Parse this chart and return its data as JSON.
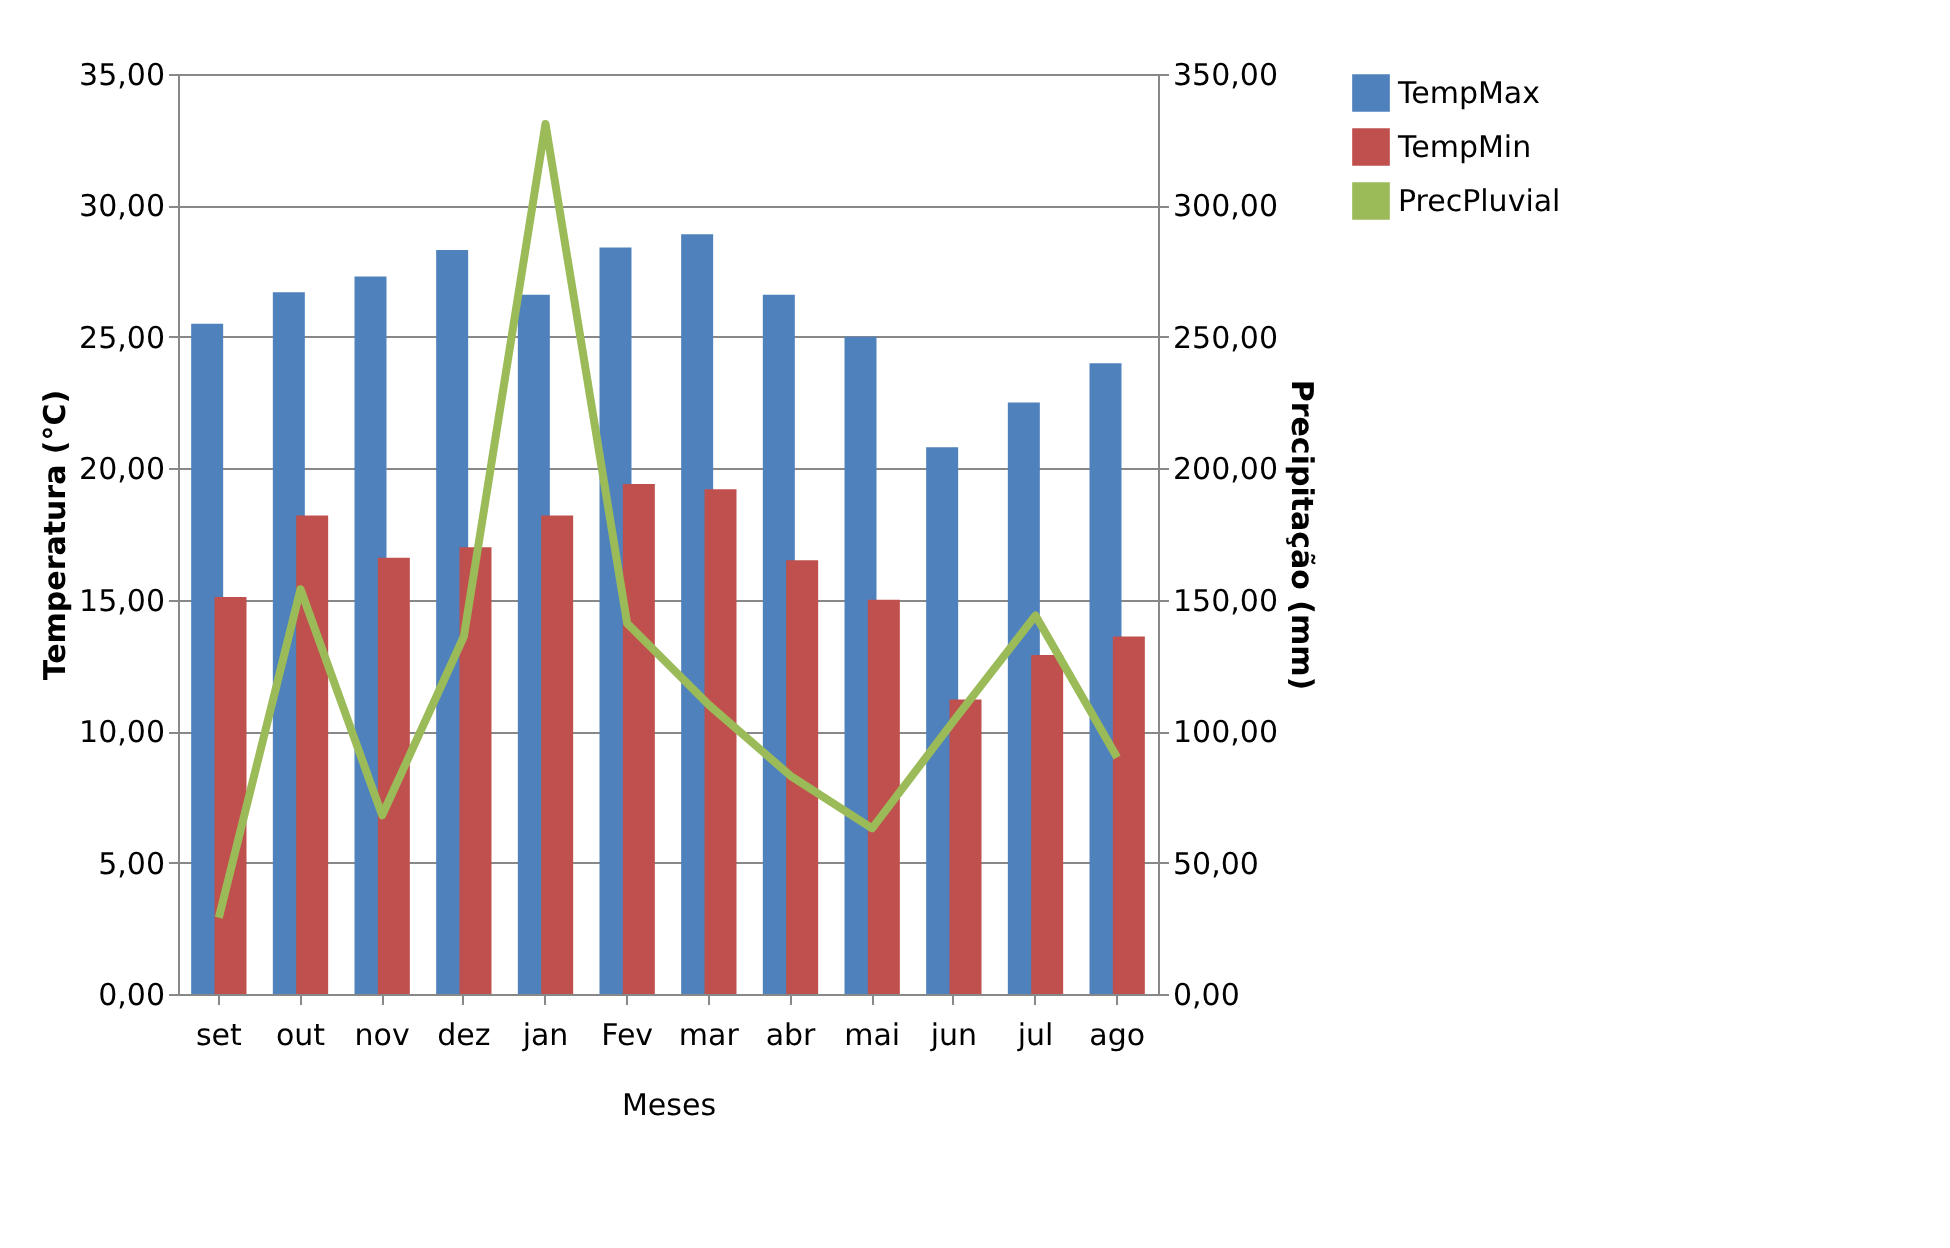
{
  "chart_data": {
    "type": "bar",
    "xlabel": "Meses",
    "ylabel": "Temperatura (°C)",
    "y2label": "Precipitação (mm)",
    "categories": [
      "set",
      "out",
      "nov",
      "dez",
      "jan",
      "Fev",
      "mar",
      "abr",
      "mai",
      "jun",
      "jul",
      "ago"
    ],
    "series": [
      {
        "name": "TempMax",
        "color": "#4f81bd",
        "values": [
          25.5,
          26.7,
          27.3,
          28.3,
          26.6,
          28.4,
          28.9,
          26.6,
          25.0,
          20.8,
          22.5,
          24.0
        ]
      },
      {
        "name": "TempMin",
        "color": "#c0504d",
        "values": [
          15.1,
          18.2,
          16.6,
          17.0,
          18.2,
          19.4,
          19.2,
          16.5,
          15.0,
          11.2,
          12.9,
          13.6
        ]
      },
      {
        "name": "PrecPluvial",
        "color": "#9bbb59",
        "type": "line",
        "axis": "y2",
        "values": [
          29,
          154,
          68,
          136,
          331,
          141,
          110,
          83,
          63,
          104,
          144,
          90
        ]
      }
    ],
    "ylim": [
      0,
      35
    ],
    "yticks": [
      {
        "value": 0,
        "label": "0,00"
      },
      {
        "value": 5,
        "label": "5,00"
      },
      {
        "value": 10,
        "label": "10,00"
      },
      {
        "value": 15,
        "label": "15,00"
      },
      {
        "value": 20,
        "label": "20,00"
      },
      {
        "value": 25,
        "label": "25,00"
      },
      {
        "value": 30,
        "label": "30,00"
      },
      {
        "value": 35,
        "label": "35,00"
      }
    ],
    "y2lim": [
      0,
      350
    ],
    "y2ticks": [
      {
        "value": 0,
        "label": "0,00"
      },
      {
        "value": 50,
        "label": "50,00"
      },
      {
        "value": 100,
        "label": "100,00"
      },
      {
        "value": 150,
        "label": "150,00"
      },
      {
        "value": 200,
        "label": "200,00"
      },
      {
        "value": 250,
        "label": "250,00"
      },
      {
        "value": 300,
        "label": "300,00"
      },
      {
        "value": 350,
        "label": "350,00"
      }
    ],
    "grid": "y",
    "legend": "right",
    "marker": "none",
    "line_style": "solid"
  }
}
